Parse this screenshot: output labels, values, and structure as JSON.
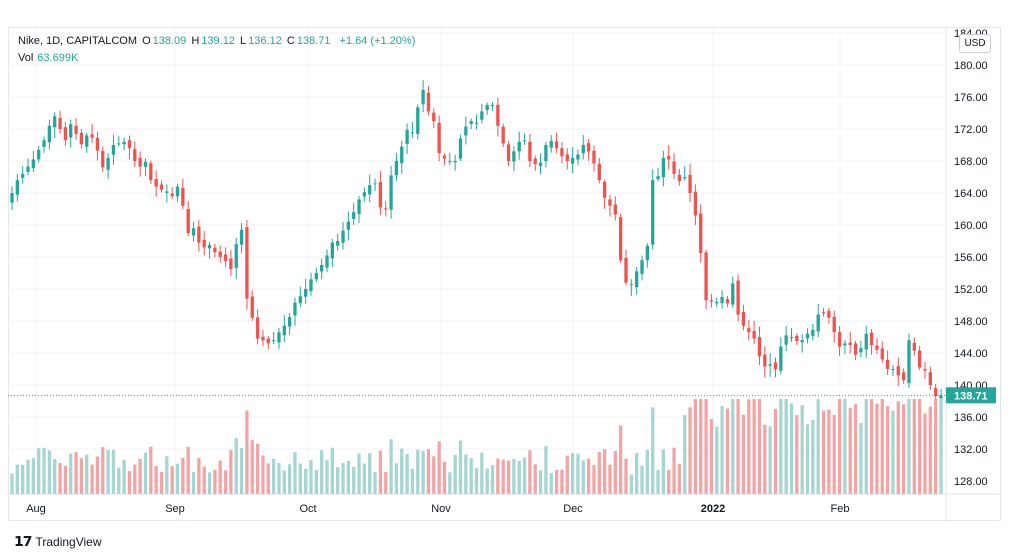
{
  "header": {
    "symbol": "Nike, 1D, CAPITALCOM",
    "o_label": "O",
    "o_val": "138.09",
    "h_label": "H",
    "h_val": "139.12",
    "l_label": "L",
    "l_val": "136.12",
    "c_label": "C",
    "c_val": "138.71",
    "change": "+1.64 (+1.20%)",
    "vol_label": "Vol",
    "vol_val": "63.699K"
  },
  "currency": "USD",
  "brand": "TradingView",
  "colors": {
    "up": "#26a69a",
    "down": "#ef5350",
    "up_vol": "#a5d6d2",
    "down_vol": "#f3a5a5",
    "grid": "#f0f3fa",
    "axis_text": "#131722",
    "last_price": "#26a69a"
  },
  "chart_data": {
    "type": "candlestick",
    "last_price": "138.71",
    "y_ticks": [
      "184.00",
      "180.00",
      "176.00",
      "172.00",
      "168.00",
      "164.00",
      "160.00",
      "156.00",
      "152.00",
      "148.00",
      "144.00",
      "140.00",
      "136.00",
      "132.00",
      "128.00"
    ],
    "x_ticks": [
      "Aug",
      "Sep",
      "Oct",
      "Nov",
      "Dec",
      "2022",
      "Feb"
    ],
    "ylim": [
      126.5,
      185
    ],
    "closes": [
      164.0,
      165.6,
      166.4,
      167.3,
      168.2,
      169.4,
      170.6,
      172.4,
      173.6,
      172.0,
      170.6,
      172.6,
      171.4,
      170.1,
      171.2,
      170.9,
      169.3,
      167.2,
      168.4,
      170.0,
      170.2,
      170.4,
      169.6,
      168.0,
      167.3,
      167.9,
      165.6,
      164.8,
      164.4,
      164.2,
      163.6,
      164.8,
      162.4,
      159.0,
      159.6,
      157.8,
      157.2,
      157.5,
      156.6,
      156.0,
      155.5,
      154.5,
      157.6,
      159.4,
      150.8,
      148.4,
      145.8,
      145.6,
      145.2,
      145.6,
      146.6,
      147.4,
      148.5,
      150.3,
      151.1,
      152.0,
      153.2,
      154.0,
      155.0,
      156.2,
      157.8,
      158.0,
      159.3,
      160.4,
      161.6,
      163.2,
      164.1,
      165.0,
      165.2,
      162.2,
      162.0,
      166.2,
      168.0,
      169.8,
      171.9,
      171.6,
      174.7,
      176.9,
      174.2,
      173.0,
      169.0,
      168.3,
      168.0,
      168.0,
      170.8,
      172.3,
      173.0,
      172.8,
      174.2,
      175.0,
      175.0,
      172.4,
      170.2,
      168.0,
      169.2,
      170.4,
      170.6,
      168.0,
      167.6,
      167.8,
      170.0,
      170.5,
      169.6,
      168.6,
      168.0,
      168.4,
      168.8,
      170.0,
      169.2,
      167.7,
      165.6,
      163.4,
      162.4,
      161.3,
      155.6,
      152.8,
      152.6,
      154.2,
      155.6,
      157.4,
      165.6,
      166.1,
      168.4,
      168.2,
      166.4,
      165.5,
      166.0,
      164.0,
      161.2,
      156.5,
      150.6,
      150.4,
      150.4,
      151.0,
      150.2,
      152.7,
      148.8,
      147.4,
      146.6,
      145.8,
      143.6,
      142.3,
      142.6,
      142.0,
      144.8,
      146.2,
      146.0,
      145.5,
      145.6,
      146.4,
      146.9,
      148.8,
      149.0,
      148.4,
      146.6,
      144.8,
      145.2,
      145.0,
      143.8,
      144.6,
      146.4,
      145.0,
      144.4,
      143.2,
      142.0,
      142.0,
      141.2,
      140.6,
      145.6,
      144.3,
      142.2,
      141.8,
      140.0,
      138.6,
      138.71
    ]
  }
}
